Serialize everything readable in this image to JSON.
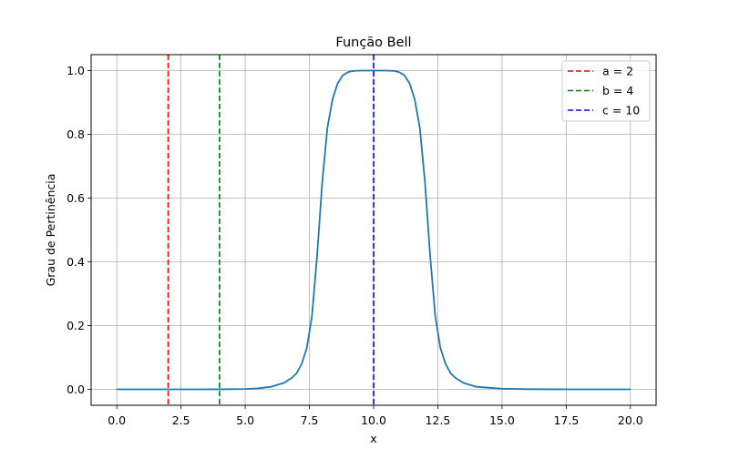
{
  "chart_data": {
    "type": "line",
    "title": "Função Bell",
    "xlabel": "x",
    "ylabel": "Grau de Pertinência",
    "xlim": [
      -1,
      21
    ],
    "ylim": [
      -0.05,
      1.05
    ],
    "x_ticks": [
      0.0,
      2.5,
      5.0,
      7.5,
      10.0,
      12.5,
      15.0,
      17.5,
      20.0
    ],
    "x_tick_labels": [
      "0.0",
      "2.5",
      "5.0",
      "7.5",
      "10.0",
      "12.5",
      "15.0",
      "17.5",
      "20.0"
    ],
    "y_ticks": [
      0.0,
      0.2,
      0.4,
      0.6,
      0.8,
      1.0
    ],
    "y_tick_labels": [
      "0.0",
      "0.2",
      "0.4",
      "0.6",
      "0.8",
      "1.0"
    ],
    "grid": true,
    "legend_position": "top-right",
    "curve": {
      "color": "#1f77b4",
      "x": [
        0.0,
        1.0,
        2.0,
        3.0,
        4.0,
        5.0,
        5.5,
        6.0,
        6.5,
        6.8,
        7.0,
        7.2,
        7.4,
        7.6,
        7.8,
        8.0,
        8.2,
        8.4,
        8.6,
        8.8,
        9.0,
        9.2,
        9.5,
        10.0,
        10.5,
        10.8,
        11.0,
        11.2,
        11.4,
        11.6,
        11.8,
        12.0,
        12.2,
        12.4,
        12.6,
        12.8,
        13.0,
        13.2,
        13.5,
        14.0,
        15.0,
        16.0,
        17.0,
        18.0,
        19.0,
        20.0
      ],
      "y": [
        0.0,
        0.0,
        0.0,
        0.0,
        0.0002,
        0.001,
        0.003,
        0.008,
        0.02,
        0.035,
        0.05,
        0.08,
        0.13,
        0.23,
        0.42,
        0.65,
        0.82,
        0.91,
        0.96,
        0.985,
        0.995,
        0.999,
        1.0,
        1.0,
        1.0,
        0.999,
        0.995,
        0.985,
        0.96,
        0.91,
        0.82,
        0.65,
        0.42,
        0.23,
        0.13,
        0.08,
        0.05,
        0.035,
        0.02,
        0.008,
        0.002,
        0.0005,
        0.0002,
        0.0,
        0.0,
        0.0
      ]
    },
    "vlines": [
      {
        "label": "a = 2",
        "x": 2,
        "color": "#ff0000"
      },
      {
        "label": "b = 4",
        "x": 4,
        "color": "#008000"
      },
      {
        "label": "c = 10",
        "x": 10,
        "color": "#0000ff"
      }
    ]
  }
}
